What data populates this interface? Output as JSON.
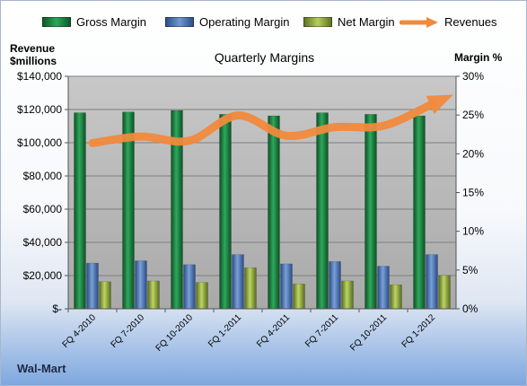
{
  "legend": {
    "gross_margin": "Gross Margin",
    "operating_margin": "Operating Margin",
    "net_margin": "Net Margin",
    "revenues": "Revenues"
  },
  "left_axis_title_line1": "Revenue",
  "left_axis_title_line2": "$millions",
  "right_axis_title": "Margin %",
  "company": "Wal-Mart",
  "colors": {
    "gross": "#1f7a3d",
    "operating": "#4a72b0",
    "net": "#8aa43a",
    "revenue": "#f08a3c"
  },
  "chart_data": {
    "type": "bar",
    "title": "Quarterly Margins",
    "categories": [
      "FQ 4-2010",
      "FQ 7-2010",
      "FQ 10-2010",
      "FQ 1-2011",
      "FQ 4-2011",
      "FQ 7-2011",
      "FQ 10-2011",
      "FQ 1-2012"
    ],
    "left_axis": {
      "min": 0,
      "max": 140000,
      "step": 20000,
      "tick_labels": [
        "$-",
        "$20,000",
        "$40,000",
        "$60,000",
        "$80,000",
        "$100,000",
        "$120,000",
        "$140,000"
      ]
    },
    "right_axis": {
      "min": 0,
      "max": 30,
      "step": 5,
      "tick_labels": [
        "0%",
        "5%",
        "10%",
        "15%",
        "20%",
        "25%",
        "30%"
      ]
    },
    "series": [
      {
        "name": "Gross Margin",
        "axis": "right",
        "type": "bar",
        "values": [
          25.3,
          25.4,
          25.6,
          25.1,
          24.9,
          25.3,
          25.1,
          24.9
        ]
      },
      {
        "name": "Operating Margin",
        "axis": "right",
        "type": "bar",
        "values": [
          5.9,
          6.2,
          5.7,
          7.0,
          5.8,
          6.1,
          5.5,
          7.0
        ]
      },
      {
        "name": "Net Margin",
        "axis": "right",
        "type": "bar",
        "values": [
          3.5,
          3.6,
          3.4,
          5.3,
          3.2,
          3.6,
          3.1,
          4.3
        ]
      },
      {
        "name": "Revenues",
        "axis": "left",
        "type": "line",
        "values": [
          99800,
          103700,
          101200,
          116400,
          104200,
          109400,
          110200,
          123200
        ]
      }
    ],
    "grid": true,
    "legend_position": "top"
  }
}
